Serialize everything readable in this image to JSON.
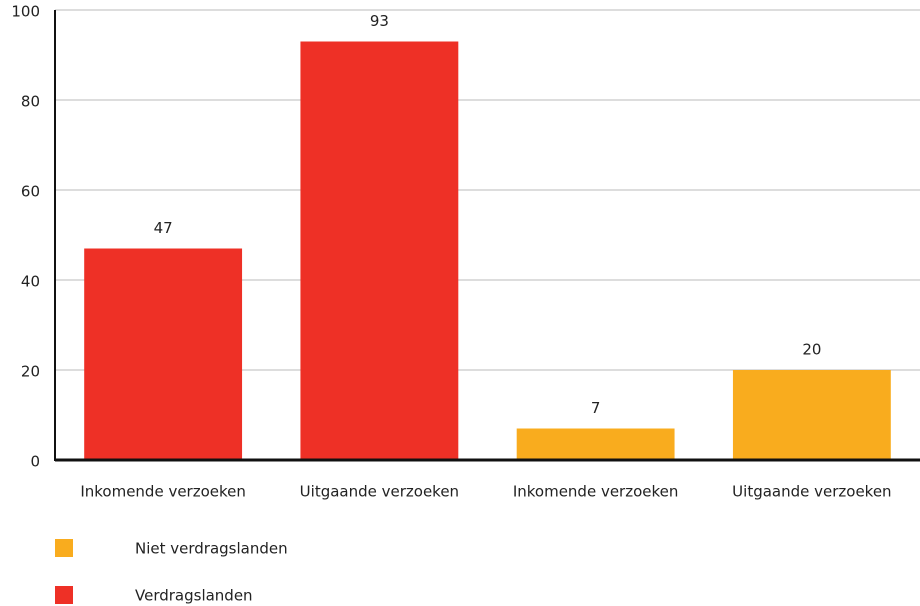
{
  "chart_data": {
    "type": "bar",
    "categories": [
      "Inkomende verzoeken",
      "Uitgaande verzoeken",
      "Inkomende verzoeken",
      "Uitgaande verzoeken"
    ],
    "series": [
      {
        "name": "Niet verdragslanden",
        "color": "#f9ac1e",
        "values": [
          null,
          null,
          7,
          20
        ]
      },
      {
        "name": "Verdragslanden",
        "color": "#ee3026",
        "values": [
          47,
          93,
          null,
          null
        ]
      }
    ],
    "ylim": [
      0,
      100
    ],
    "yticks": [
      0,
      20,
      40,
      60,
      80,
      100
    ],
    "grid": true,
    "legend": "bottom-left"
  }
}
